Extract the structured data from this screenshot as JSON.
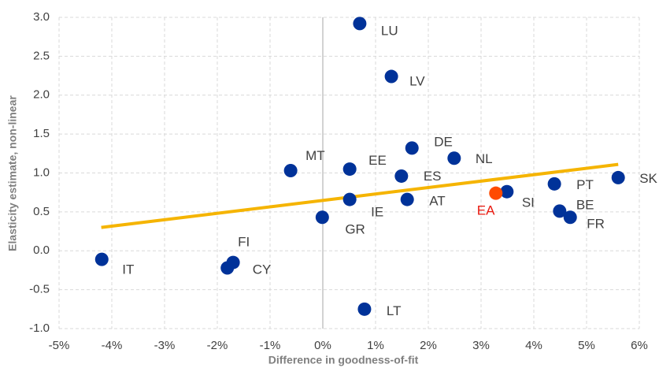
{
  "chart_data": {
    "type": "scatter",
    "x_label": "Difference in goodness-of-fit",
    "y_label": "Elasticity estimate, non-linear",
    "xlim": [
      -5,
      6
    ],
    "xticks": [
      {
        "value": -5,
        "label": "-5%"
      },
      {
        "value": -4,
        "label": "-4%"
      },
      {
        "value": -3,
        "label": "-3%"
      },
      {
        "value": -2,
        "label": "-2%"
      },
      {
        "value": -1,
        "label": "-1%"
      },
      {
        "value": 0,
        "label": "0%"
      },
      {
        "value": 1,
        "label": "1%"
      },
      {
        "value": 2,
        "label": "2%"
      },
      {
        "value": 3,
        "label": "3%"
      },
      {
        "value": 4,
        "label": "4%"
      },
      {
        "value": 5,
        "label": "5%"
      },
      {
        "value": 6,
        "label": "6%"
      }
    ],
    "ylim": [
      -1,
      3
    ],
    "yticks": [
      {
        "value": -1,
        "label": "-1.0"
      },
      {
        "value": -0.5,
        "label": "-0.5"
      },
      {
        "value": 0,
        "label": "0.0"
      },
      {
        "value": 0.5,
        "label": "0.5"
      },
      {
        "value": 1,
        "label": "1.0"
      },
      {
        "value": 1.5,
        "label": "1.5"
      },
      {
        "value": 2,
        "label": "2.0"
      },
      {
        "value": 2.5,
        "label": "2.5"
      },
      {
        "value": 3,
        "label": "3.0"
      }
    ],
    "grid": true,
    "series": [
      {
        "color": "#003299",
        "label_color": "#404040",
        "labels": [
          "LU",
          "LV",
          "DE",
          "NL",
          "MT",
          "EE",
          "ES",
          "SK",
          "PT",
          "SI",
          "AT",
          "IE",
          "BE",
          "FR",
          "GR",
          "IT",
          "FI",
          "CY",
          "LT"
        ],
        "x": [
          0.7,
          1.3,
          1.69,
          2.49,
          -0.61,
          0.51,
          1.49,
          5.6,
          4.39,
          3.49,
          1.6,
          0.51,
          4.49,
          4.69,
          -0.01,
          -4.19,
          -1.7,
          -1.81,
          0.79
        ],
        "values": [
          2.92,
          2.24,
          1.32,
          1.19,
          1.03,
          1.05,
          0.96,
          0.94,
          0.86,
          0.76,
          0.66,
          0.66,
          0.51,
          0.43,
          0.43,
          -0.11,
          -0.15,
          -0.22,
          -0.75
        ]
      },
      {
        "color": "#ff4b00",
        "label_color": "#e8190f",
        "labels": [
          "EA"
        ],
        "x": [
          3.28
        ],
        "values": [
          0.74
        ]
      }
    ],
    "trendline": {
      "color": "#f5b400",
      "x": [
        -4.2,
        5.6
      ],
      "values": [
        0.3,
        1.11
      ]
    }
  }
}
